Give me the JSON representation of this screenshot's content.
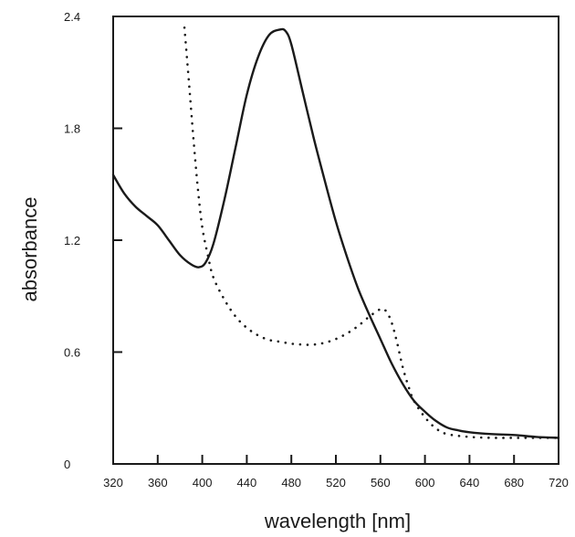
{
  "chart_data": {
    "type": "line",
    "title": "",
    "xlabel": "wavelength [nm]",
    "ylabel": "absorbance",
    "xlim": [
      320,
      720
    ],
    "ylim": [
      0,
      2.4
    ],
    "x_ticks": [
      "320",
      "360",
      "400",
      "440",
      "480",
      "520",
      "560",
      "600",
      "640",
      "680",
      "720"
    ],
    "y_ticks": [
      "0",
      "0.6",
      "1.2",
      "1.8",
      "2.4"
    ],
    "grid": false,
    "legend": "none",
    "series": [
      {
        "style": "solid",
        "color": "#1a1a1a",
        "points": [
          [
            320,
            1.55
          ],
          [
            330,
            1.45
          ],
          [
            340,
            1.38
          ],
          [
            350,
            1.33
          ],
          [
            360,
            1.28
          ],
          [
            370,
            1.2
          ],
          [
            380,
            1.12
          ],
          [
            390,
            1.07
          ],
          [
            397,
            1.055
          ],
          [
            403,
            1.08
          ],
          [
            410,
            1.18
          ],
          [
            420,
            1.42
          ],
          [
            430,
            1.7
          ],
          [
            440,
            1.98
          ],
          [
            450,
            2.18
          ],
          [
            460,
            2.3
          ],
          [
            470,
            2.33
          ],
          [
            475,
            2.32
          ],
          [
            480,
            2.25
          ],
          [
            490,
            2.0
          ],
          [
            500,
            1.75
          ],
          [
            510,
            1.52
          ],
          [
            520,
            1.3
          ],
          [
            530,
            1.11
          ],
          [
            540,
            0.94
          ],
          [
            550,
            0.8
          ],
          [
            560,
            0.67
          ],
          [
            570,
            0.54
          ],
          [
            580,
            0.43
          ],
          [
            590,
            0.34
          ],
          [
            600,
            0.28
          ],
          [
            610,
            0.23
          ],
          [
            620,
            0.195
          ],
          [
            630,
            0.18
          ],
          [
            640,
            0.17
          ],
          [
            660,
            0.16
          ],
          [
            680,
            0.155
          ],
          [
            700,
            0.145
          ],
          [
            720,
            0.14
          ]
        ]
      },
      {
        "style": "dotted",
        "color": "#1a1a1a",
        "points": [
          [
            384,
            2.34
          ],
          [
            388,
            2.05
          ],
          [
            392,
            1.75
          ],
          [
            396,
            1.48
          ],
          [
            400,
            1.27
          ],
          [
            405,
            1.12
          ],
          [
            410,
            1.0
          ],
          [
            420,
            0.88
          ],
          [
            430,
            0.79
          ],
          [
            440,
            0.73
          ],
          [
            450,
            0.69
          ],
          [
            460,
            0.665
          ],
          [
            470,
            0.655
          ],
          [
            480,
            0.645
          ],
          [
            490,
            0.64
          ],
          [
            500,
            0.64
          ],
          [
            510,
            0.65
          ],
          [
            520,
            0.67
          ],
          [
            530,
            0.7
          ],
          [
            540,
            0.74
          ],
          [
            550,
            0.79
          ],
          [
            560,
            0.83
          ],
          [
            565,
            0.82
          ],
          [
            570,
            0.76
          ],
          [
            575,
            0.65
          ],
          [
            580,
            0.52
          ],
          [
            585,
            0.42
          ],
          [
            590,
            0.34
          ],
          [
            600,
            0.25
          ],
          [
            610,
            0.19
          ],
          [
            620,
            0.16
          ],
          [
            640,
            0.145
          ],
          [
            660,
            0.14
          ],
          [
            680,
            0.14
          ],
          [
            700,
            0.14
          ],
          [
            720,
            0.14
          ]
        ]
      }
    ]
  }
}
